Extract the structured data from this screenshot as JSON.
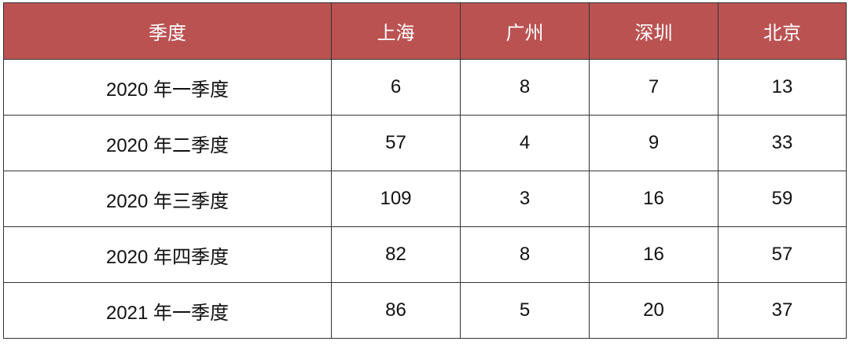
{
  "colors": {
    "header_bg": "#bb5252",
    "header_text": "#ffffff",
    "border": "#333333"
  },
  "chart_data": {
    "type": "table",
    "columns": [
      "季度",
      "上海",
      "广州",
      "深圳",
      "北京"
    ],
    "rows": [
      [
        "2020 年一季度",
        "6",
        "8",
        "7",
        "13"
      ],
      [
        "2020 年二季度",
        "57",
        "4",
        "9",
        "33"
      ],
      [
        "2020 年三季度",
        "109",
        "3",
        "16",
        "59"
      ],
      [
        "2020 年四季度",
        "82",
        "8",
        "16",
        "57"
      ],
      [
        "2021 年一季度",
        "86",
        "5",
        "20",
        "37"
      ]
    ]
  }
}
